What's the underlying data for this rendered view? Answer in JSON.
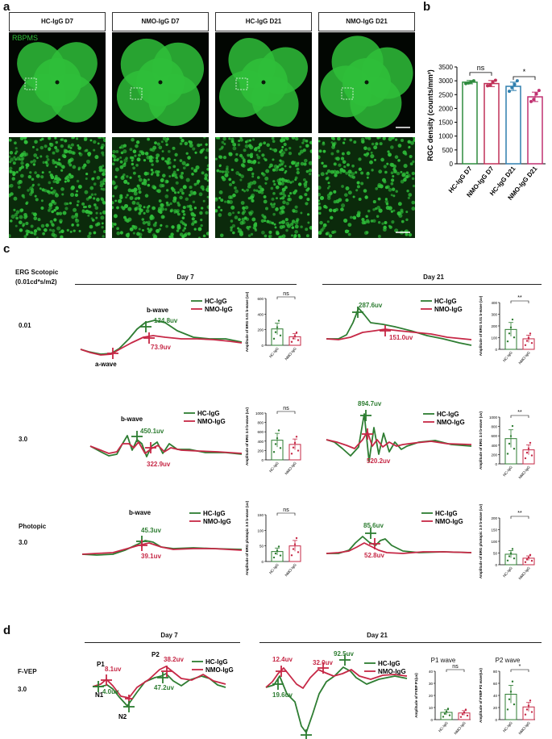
{
  "panel_labels": {
    "a": "a",
    "b": "b",
    "c": "c",
    "d": "d"
  },
  "panel_a": {
    "headers": [
      "HC-IgG D7",
      "NMO-IgG D7",
      "HC-IgG D21",
      "NMO-IgG D21"
    ],
    "stain_label": "RBPMS",
    "colors": {
      "stain": "#2fbf3a",
      "background": "#000000"
    }
  },
  "chart_b": {
    "type": "bar",
    "ylabel": "RGC density (counts/mm²)",
    "categories": [
      "HC-IgG D7",
      "NMO-IgG D7",
      "HC-IgG D21",
      "NMO-IgG D21"
    ],
    "values": [
      2950,
      2900,
      2800,
      2420
    ],
    "errors": [
      60,
      110,
      150,
      170
    ],
    "points": [
      [
        2900,
        2920,
        2960,
        3000
      ],
      [
        2820,
        2840,
        2950,
        3020
      ],
      [
        2620,
        2750,
        2870,
        3000
      ],
      [
        2250,
        2330,
        2520,
        2650
      ]
    ],
    "colors": [
      "#2e8b3e",
      "#c03058",
      "#2f7fae",
      "#c03070"
    ],
    "yticks": [
      "0",
      "500",
      "1000",
      "1500",
      "2000",
      "2500",
      "3000",
      "3500"
    ],
    "ylim": [
      0,
      3500
    ],
    "significance": [
      {
        "between": "HC-IgG D7 vs NMO-IgG D7",
        "label": "ns"
      },
      {
        "between": "HC-IgG D21 vs NMO-IgG D21",
        "label": "*"
      }
    ]
  },
  "panel_c": {
    "condition_title": "ERG Scotopic",
    "condition_unit": "(0.01cd*s/m2)",
    "day_titles": [
      "Day 7",
      "Day 21"
    ],
    "rows": [
      {
        "label": "0.01",
        "wave_label": "b-wave",
        "a_wave_label": "a-wave",
        "d7": {
          "hc": "134.8uv",
          "nmo": "73.9uv"
        },
        "d21": {
          "hc": "287.6uv",
          "nmo": "151.0uv"
        },
        "bar_d7": {
          "ylabel": "Amplitude of ERG 0.01 b-wave (uv)",
          "sig": "ns",
          "yticks": [
            "0",
            "200",
            "400",
            "600"
          ],
          "values": [
            210,
            110
          ],
          "max": 600
        },
        "bar_d21": {
          "ylabel": "Amplitude of ERG 0.01 b-wave (uv)",
          "sig": "**",
          "yticks": [
            "0",
            "100",
            "200",
            "300",
            "400"
          ],
          "values": [
            170,
            90
          ],
          "max": 400
        }
      },
      {
        "label": "3.0",
        "wave_label": "b-wave",
        "d7": {
          "hc": "450.1uv",
          "nmo": "322.9uv"
        },
        "d21": {
          "hc": "894.7uv",
          "nmo": "520.2uv"
        },
        "bar_d7": {
          "ylabel": "Amplitude of ERG 3.0 b-wave (uv)",
          "sig": "ns",
          "yticks": [
            "0",
            "200",
            "400",
            "600",
            "800",
            "1000"
          ],
          "values": [
            420,
            330
          ],
          "max": 1000
        },
        "bar_d21": {
          "ylabel": "Amplitude of ERG 3.0 b-wave (uv)",
          "sig": "**",
          "yticks": [
            "0",
            "200",
            "400",
            "600",
            "800",
            "1000"
          ],
          "values": [
            540,
            300
          ],
          "max": 1000
        }
      },
      {
        "label": "3.0",
        "sub_title": "Photopic",
        "wave_label": "b-wave",
        "d7": {
          "hc": "45.3uv",
          "nmo": "39.1uv"
        },
        "d21": {
          "hc": "85.6uv",
          "nmo": "52.8uv"
        },
        "bar_d7": {
          "ylabel": "Amplitude of ERG photopic 3.0 b-wave (uv)",
          "sig": "ns",
          "yticks": [
            "0",
            "50",
            "100",
            "150"
          ],
          "values": [
            32,
            50
          ],
          "max": 150
        },
        "bar_d21": {
          "ylabel": "Amplitude of ERG photopic 3.0 b-wave (uv)",
          "sig": "**",
          "yticks": [
            "0",
            "50",
            "100",
            "150",
            "200"
          ],
          "values": [
            45,
            28
          ],
          "max": 200
        }
      }
    ]
  },
  "panel_d": {
    "condition_title": "F-VEP",
    "row_label": "3.0",
    "day_titles": [
      "Day 7",
      "Day 21"
    ],
    "peaks_d7": {
      "P1": "P1",
      "N1": "N1",
      "N2": "N2",
      "P2": "P2",
      "nmo_p1": "8.1uv",
      "hc_p1": "4.0uv",
      "nmo_p2": "38.2uv",
      "hc_p2": "47.2uv"
    },
    "peaks_d21": {
      "nmo_p1": "12.4uv",
      "hc_p1": "19.6uv",
      "nmo_p2": "32.0uv",
      "hc_p2": "92.5uv"
    },
    "bar_p1": {
      "title": "P1 wave",
      "ylabel": "Amplitude of FVEP P1(uv)",
      "sig": "ns",
      "yticks": [
        "0",
        "10",
        "20",
        "30",
        "40"
      ],
      "values": [
        6,
        5.5
      ],
      "max": 40
    },
    "bar_p2": {
      "title": "P2 wave",
      "ylabel": "Amplitude of FVEP P2 wave(uv)",
      "sig": "*",
      "yticks": [
        "0",
        "20",
        "40",
        "60",
        "80"
      ],
      "values": [
        42,
        21
      ],
      "max": 80
    }
  },
  "legend": {
    "hc": "HC-IgG",
    "nmo": "NMO-IgG"
  },
  "bar_categories": [
    "HC-IgG",
    "NMO-IgG"
  ],
  "colors": {
    "hc": "#2e7d32",
    "nmo": "#c62846"
  }
}
